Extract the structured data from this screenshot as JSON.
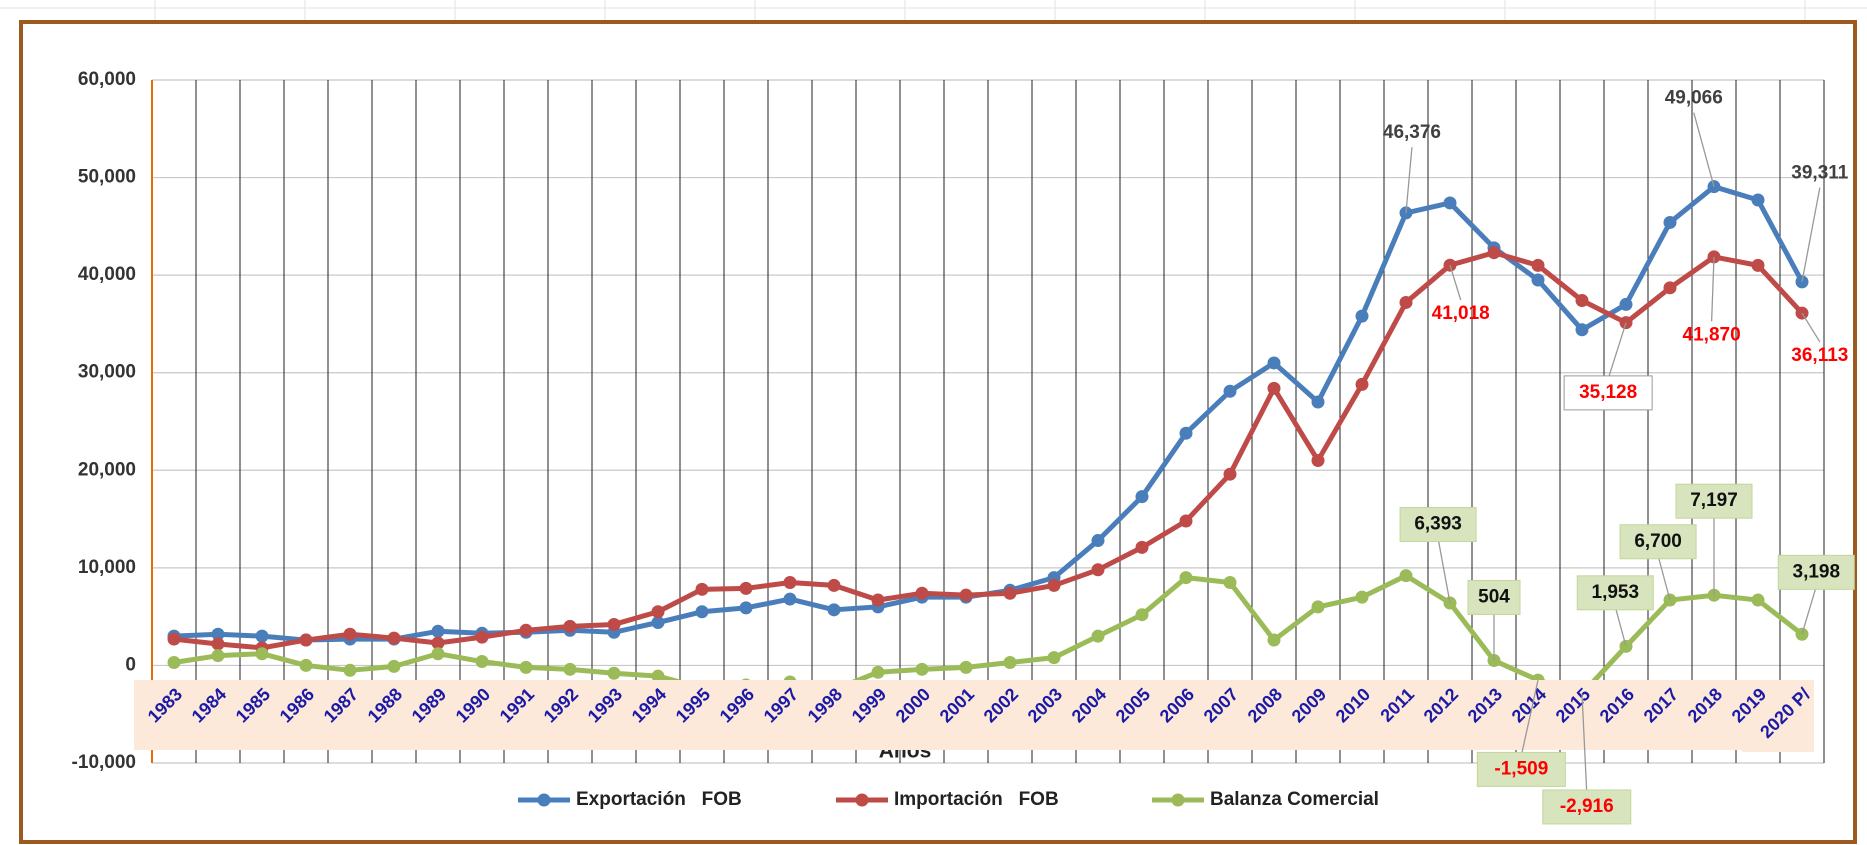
{
  "chart_data": {
    "type": "line",
    "x_label": "Años",
    "categories": [
      "1983",
      "1984",
      "1985",
      "1986",
      "1987",
      "1988",
      "1989",
      "1990",
      "1991",
      "1992",
      "1993",
      "1994",
      "1995",
      "1996",
      "1997",
      "1998",
      "1999",
      "2000",
      "2001",
      "2002",
      "2003",
      "2004",
      "2005",
      "2006",
      "2007",
      "2008",
      "2009",
      "2010",
      "2011",
      "2012",
      "2013",
      "2014",
      "2015",
      "2016",
      "2017",
      "2018",
      "2019",
      "2020 P/"
    ],
    "ylim": [
      -10000,
      60000
    ],
    "yticks": [
      {
        "value": -10000,
        "label": "-10,000"
      },
      0,
      {
        "value": 10000,
        "label": "10,000"
      },
      {
        "value": 20000,
        "label": "20,000"
      },
      {
        "value": 30000,
        "label": "30,000"
      },
      {
        "value": 40000,
        "label": "40,000"
      },
      {
        "value": 50000,
        "label": "50,000"
      },
      {
        "value": 60000,
        "label": "60,000"
      }
    ],
    "grid": true,
    "legend": "bottom",
    "series": [
      {
        "name": "Exportación   FOB",
        "color": "#4a7ebb",
        "values": [
          3000,
          3200,
          3000,
          2600,
          2700,
          2700,
          3500,
          3300,
          3400,
          3600,
          3400,
          4400,
          5500,
          5900,
          6800,
          5700,
          6000,
          7000,
          7000,
          7700,
          9000,
          12800,
          17300,
          23800,
          28100,
          31000,
          27000,
          35800,
          46376,
          47400,
          42800,
          39500,
          34400,
          37000,
          45400,
          49066,
          47700,
          39311
        ],
        "value_labels": [
          null,
          null,
          null,
          null,
          null,
          null,
          null,
          null,
          null,
          null,
          null,
          null,
          null,
          null,
          null,
          null,
          null,
          null,
          null,
          null,
          null,
          null,
          null,
          null,
          null,
          null,
          null,
          null,
          "46,376",
          null,
          null,
          null,
          null,
          null,
          null,
          "49,066",
          null,
          "39,311"
        ]
      },
      {
        "name": "Importación   FOB",
        "color": "#be4b48",
        "values": [
          2700,
          2200,
          1800,
          2600,
          3200,
          2800,
          2300,
          2900,
          3600,
          4000,
          4200,
          5500,
          7800,
          7900,
          8500,
          8200,
          6700,
          7400,
          7200,
          7400,
          8200,
          9800,
          12100,
          14800,
          19600,
          28400,
          21000,
          28800,
          37200,
          41018,
          42300,
          41000,
          37400,
          35128,
          38700,
          41870,
          41000,
          36113
        ],
        "value_labels": [
          null,
          null,
          null,
          null,
          null,
          null,
          null,
          null,
          null,
          null,
          null,
          null,
          null,
          null,
          null,
          null,
          null,
          null,
          null,
          null,
          null,
          null,
          null,
          null,
          null,
          null,
          null,
          null,
          null,
          "41,018",
          null,
          null,
          null,
          "35,128",
          null,
          "41,870",
          null,
          "36,113"
        ]
      },
      {
        "name": "Balanza Comercial",
        "color": "#9bbb59",
        "values": [
          300,
          1000,
          1200,
          0,
          -500,
          -100,
          1200,
          400,
          -200,
          -400,
          -800,
          -1100,
          -2300,
          -2000,
          -1700,
          -2500,
          -700,
          -400,
          -200,
          300,
          800,
          3000,
          5200,
          9000,
          8500,
          2600,
          6000,
          7000,
          9200,
          6393,
          504,
          -1509,
          -2916,
          1953,
          6700,
          7197,
          6700,
          3198
        ],
        "value_labels": [
          null,
          null,
          null,
          null,
          null,
          null,
          null,
          null,
          null,
          null,
          null,
          null,
          null,
          null,
          null,
          null,
          null,
          null,
          null,
          null,
          null,
          null,
          null,
          null,
          null,
          null,
          null,
          null,
          null,
          "6,393",
          "504",
          "-1,509",
          "-2,916",
          "1,953",
          "6,700",
          "7,197",
          null,
          "3,198"
        ]
      }
    ]
  }
}
